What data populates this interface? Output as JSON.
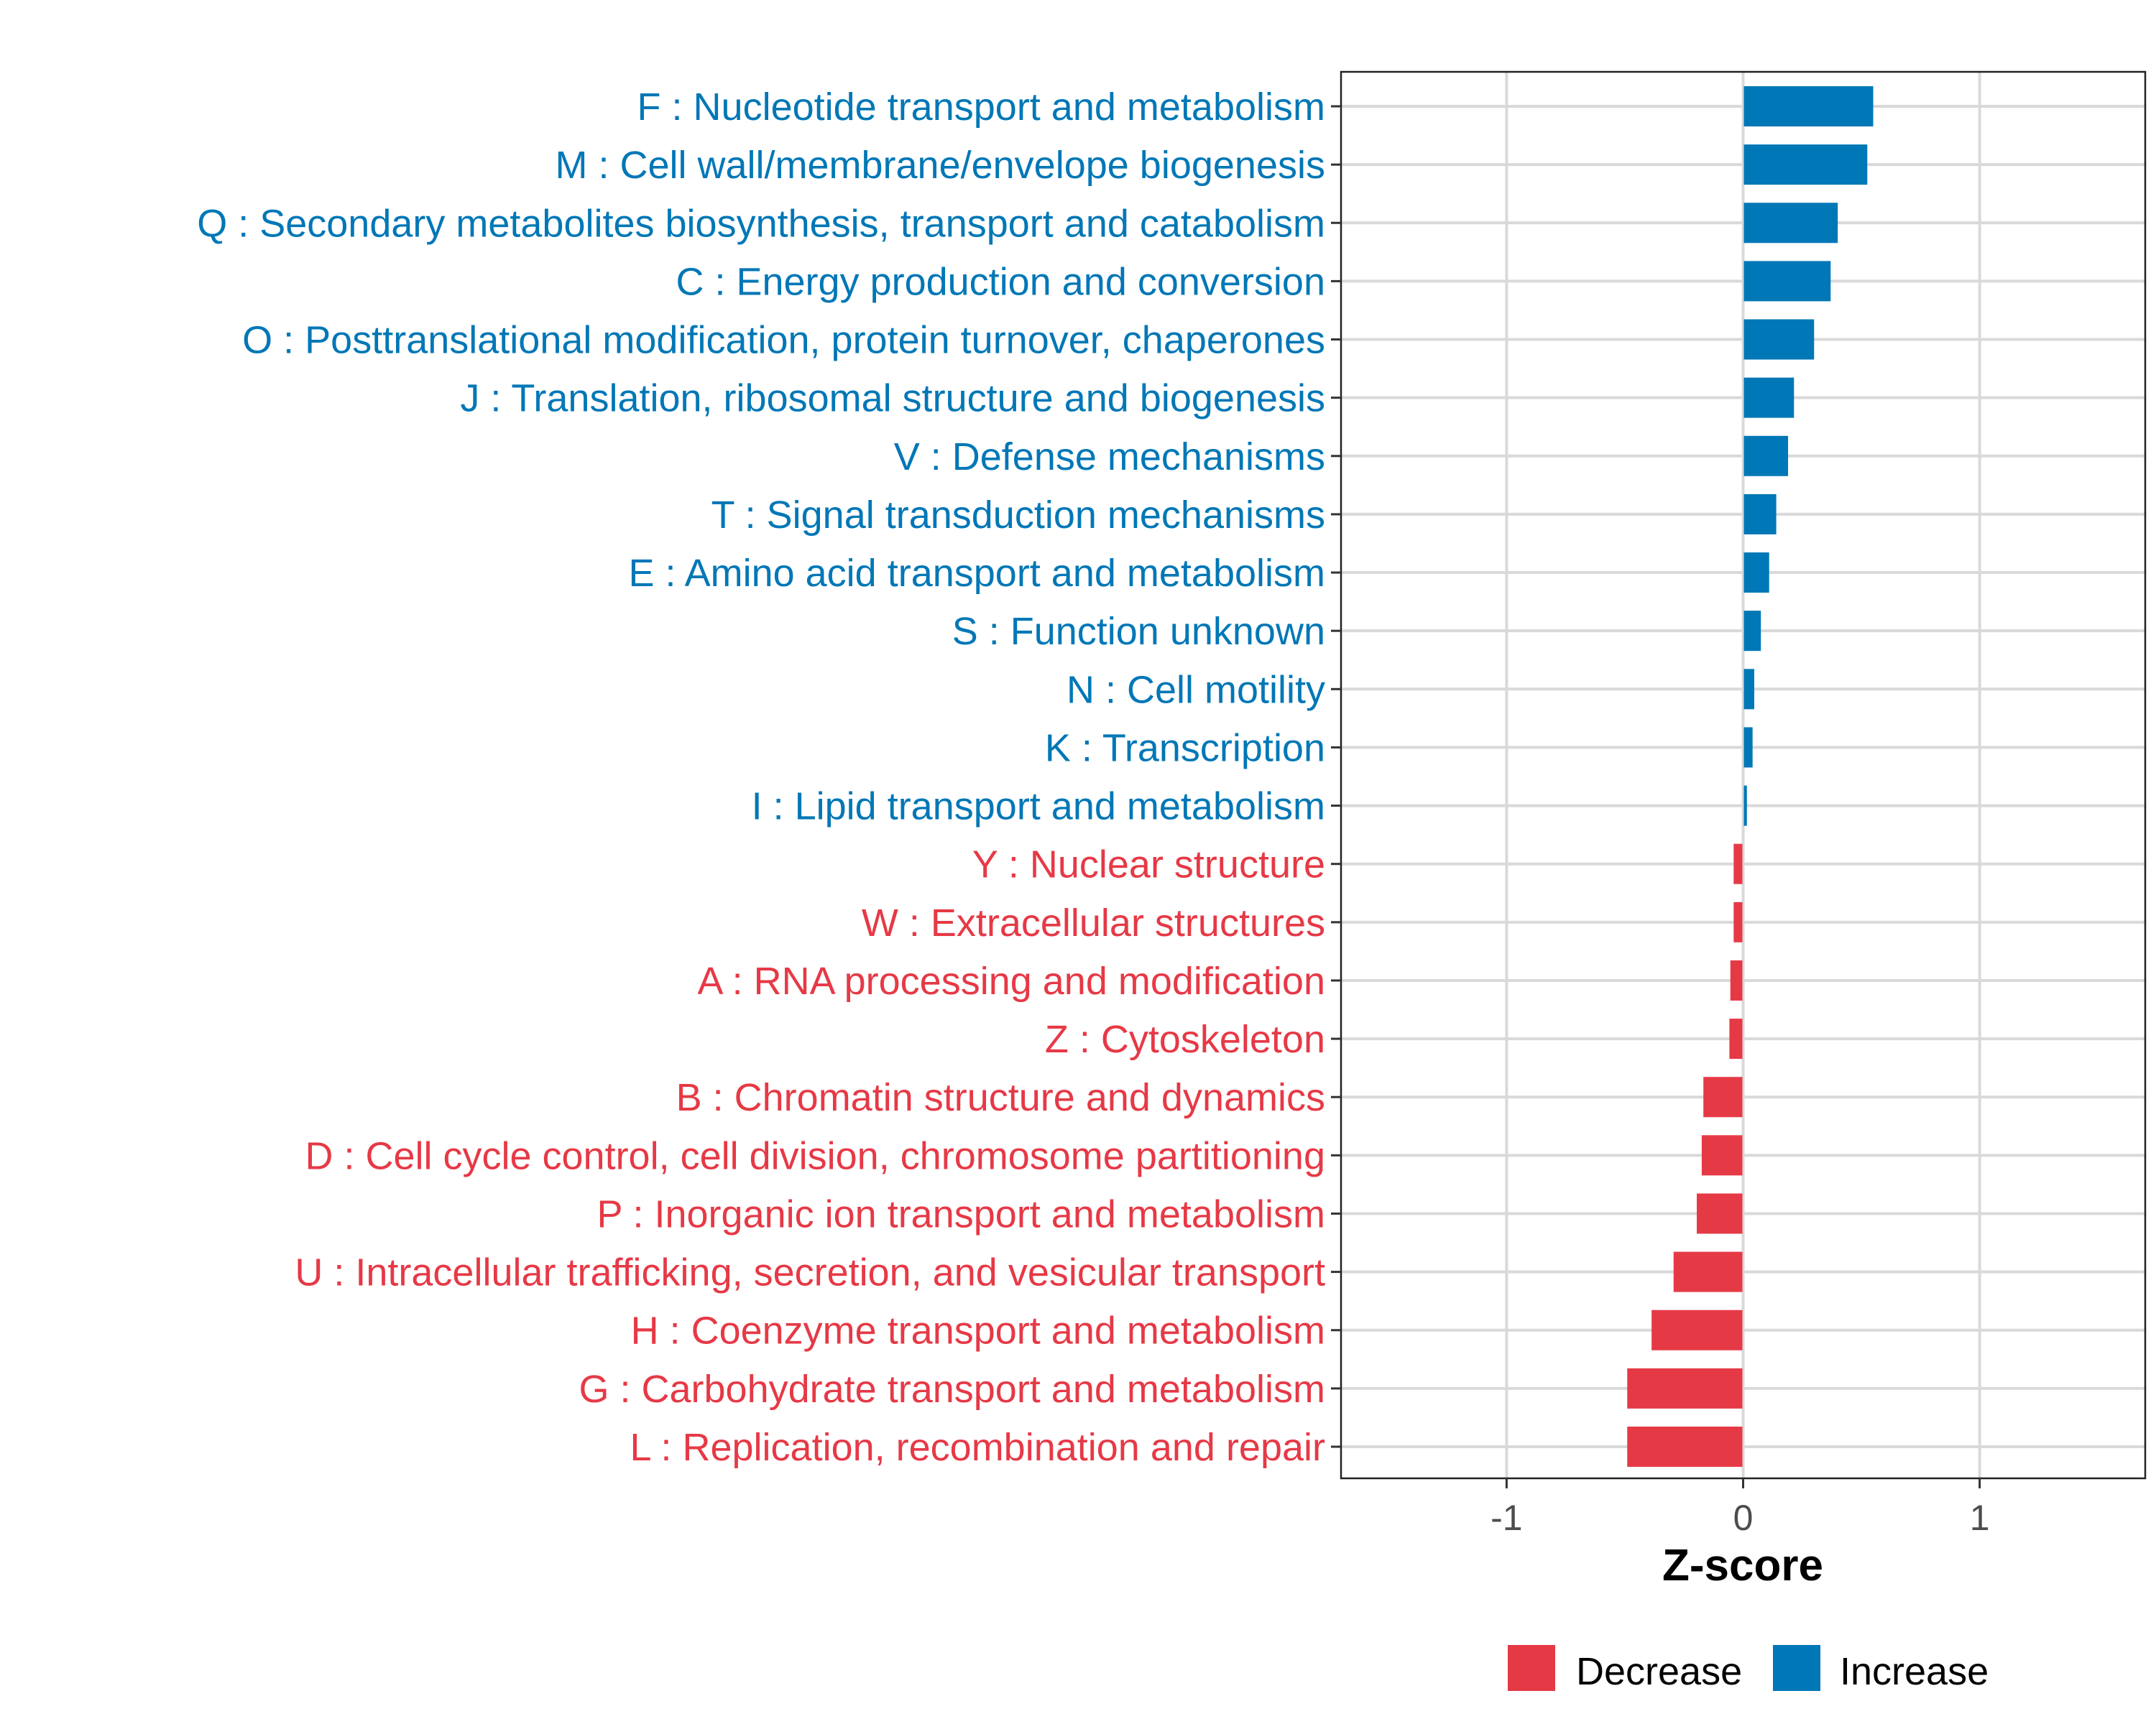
{
  "chart_data": {
    "type": "bar",
    "orientation": "horizontal",
    "title": "",
    "xlabel": "Z-score",
    "ylabel": "",
    "xlim": [
      -1.7,
      1.7
    ],
    "xticks": [
      -1,
      0,
      1
    ],
    "xtick_labels": [
      "-1",
      "0",
      "1"
    ],
    "grid": true,
    "legend_position": "bottom",
    "legend": [
      {
        "label": "Decrease",
        "color": "#E63946"
      },
      {
        "label": "Increase",
        "color": "#0077B6"
      }
    ],
    "categories": [
      "F : Nucleotide transport and metabolism",
      "M : Cell wall/membrane/envelope biogenesis",
      "Q : Secondary metabolites biosynthesis, transport and catabolism",
      "C : Energy production and conversion",
      "O : Posttranslational modification, protein turnover, chaperones",
      "J : Translation, ribosomal structure and biogenesis",
      "V : Defense mechanisms",
      "T : Signal transduction mechanisms",
      "E : Amino acid transport and metabolism",
      "S : Function unknown",
      "N : Cell motility",
      "K : Transcription",
      "I : Lipid transport and metabolism",
      "Y : Nuclear structure",
      "W : Extracellular structures",
      "A : RNA processing and modification",
      "Z : Cytoskeleton",
      "B : Chromatin structure and dynamics",
      "D : Cell cycle control, cell division, chromosome partitioning",
      "P : Inorganic ion transport and metabolism",
      "U : Intracellular trafficking, secretion, and vesicular transport",
      "H : Coenzyme transport and metabolism",
      "G : Carbohydrate transport and metabolism",
      "L : Replication, recombination and repair"
    ],
    "values": [
      0.55,
      0.525,
      0.4,
      0.37,
      0.3,
      0.215,
      0.19,
      0.14,
      0.11,
      0.075,
      0.047,
      0.04,
      0.016,
      -0.04,
      -0.04,
      -0.054,
      -0.058,
      -0.168,
      -0.175,
      -0.196,
      -0.294,
      -0.387,
      -0.49,
      -0.49
    ]
  }
}
